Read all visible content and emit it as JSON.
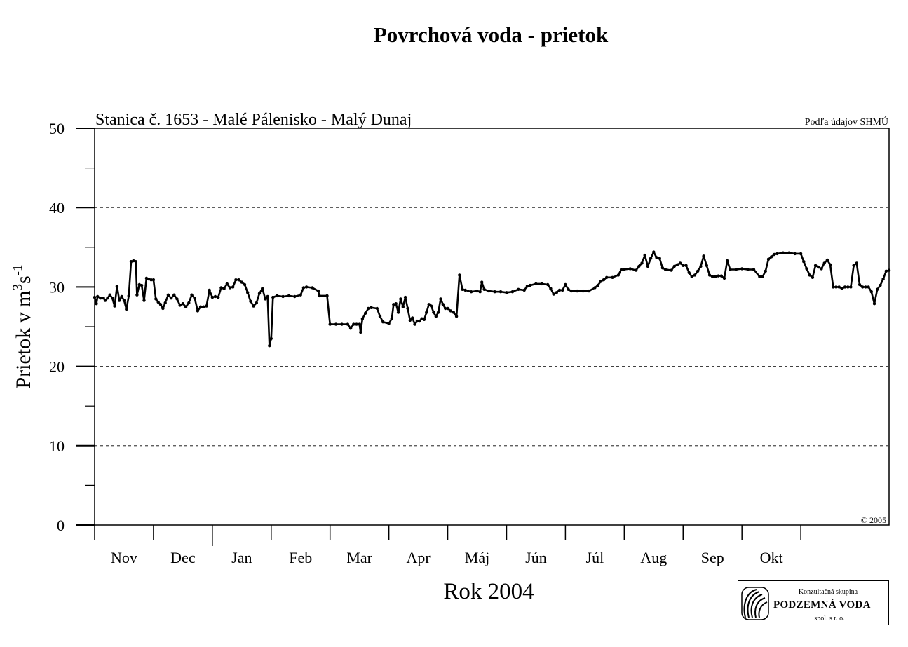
{
  "chart_data": {
    "type": "line",
    "title": "Povrchová voda - prietok",
    "subtitle": "Stanica č. 1653 - Malé Pálenisko - Malý Dunaj",
    "source_note": "Podľa údajov SHMÚ",
    "copyright": "© 2005",
    "xlabel": "Rok 2004",
    "ylabel_main": "Prietok v m",
    "ylabel_sup1": "3",
    "ylabel_mid": "s",
    "ylabel_sup2": "-1",
    "ylim": [
      0,
      50
    ],
    "yticks": [
      0,
      10,
      20,
      30,
      40,
      50
    ],
    "grid": "horizontal dashed",
    "months": [
      "Nov",
      "Dec",
      "Jan",
      "Feb",
      "Mar",
      "Apr",
      "Máj",
      "Jún",
      "Júl",
      "Aug",
      "Sep",
      "Okt"
    ],
    "x_unit": "month index (0 = start of Nov)",
    "series": [
      {
        "values": [
          [
            0.0,
            28.7
          ],
          [
            0.03,
            27.9
          ],
          [
            0.05,
            28.8
          ],
          [
            0.1,
            28.6
          ],
          [
            0.15,
            28.6
          ],
          [
            0.18,
            28.3
          ],
          [
            0.22,
            28.6
          ],
          [
            0.26,
            29.0
          ],
          [
            0.3,
            28.6
          ],
          [
            0.34,
            27.6
          ],
          [
            0.38,
            30.1
          ],
          [
            0.42,
            28.3
          ],
          [
            0.46,
            28.8
          ],
          [
            0.5,
            28.3
          ],
          [
            0.54,
            27.2
          ],
          [
            0.58,
            28.9
          ],
          [
            0.62,
            33.2
          ],
          [
            0.66,
            33.3
          ],
          [
            0.7,
            33.2
          ],
          [
            0.72,
            29.0
          ],
          [
            0.76,
            30.3
          ],
          [
            0.8,
            30.2
          ],
          [
            0.84,
            28.3
          ],
          [
            0.88,
            31.1
          ],
          [
            0.92,
            31.0
          ],
          [
            0.96,
            30.9
          ],
          [
            1.0,
            30.9
          ],
          [
            1.04,
            28.5
          ],
          [
            1.08,
            28.1
          ],
          [
            1.12,
            27.8
          ],
          [
            1.16,
            27.3
          ],
          [
            1.2,
            28.0
          ],
          [
            1.25,
            29.0
          ],
          [
            1.3,
            28.6
          ],
          [
            1.35,
            29.0
          ],
          [
            1.4,
            28.5
          ],
          [
            1.45,
            27.7
          ],
          [
            1.5,
            27.9
          ],
          [
            1.55,
            27.5
          ],
          [
            1.6,
            28.0
          ],
          [
            1.65,
            29.0
          ],
          [
            1.7,
            28.6
          ],
          [
            1.75,
            27.0
          ],
          [
            1.8,
            27.5
          ],
          [
            1.85,
            27.5
          ],
          [
            1.9,
            27.6
          ],
          [
            1.95,
            29.6
          ],
          [
            2.0,
            28.7
          ],
          [
            2.05,
            28.8
          ],
          [
            2.1,
            28.7
          ],
          [
            2.15,
            29.9
          ],
          [
            2.2,
            29.8
          ],
          [
            2.25,
            30.4
          ],
          [
            2.3,
            29.9
          ],
          [
            2.35,
            30.0
          ],
          [
            2.4,
            30.9
          ],
          [
            2.45,
            30.9
          ],
          [
            2.5,
            30.6
          ],
          [
            2.55,
            30.3
          ],
          [
            2.6,
            29.3
          ],
          [
            2.65,
            28.2
          ],
          [
            2.7,
            27.6
          ],
          [
            2.75,
            28.0
          ],
          [
            2.8,
            29.2
          ],
          [
            2.85,
            29.8
          ],
          [
            2.9,
            28.5
          ],
          [
            2.94,
            28.8
          ],
          [
            2.97,
            22.6
          ],
          [
            3.0,
            23.5
          ],
          [
            3.03,
            28.7
          ],
          [
            3.1,
            28.9
          ],
          [
            3.2,
            28.8
          ],
          [
            3.3,
            28.9
          ],
          [
            3.4,
            28.8
          ],
          [
            3.5,
            29.0
          ],
          [
            3.55,
            29.9
          ],
          [
            3.6,
            30.0
          ],
          [
            3.7,
            29.9
          ],
          [
            3.8,
            29.5
          ],
          [
            3.82,
            28.9
          ],
          [
            3.95,
            28.9
          ],
          [
            4.0,
            25.3
          ],
          [
            4.1,
            25.3
          ],
          [
            4.2,
            25.3
          ],
          [
            4.3,
            25.3
          ],
          [
            4.35,
            24.8
          ],
          [
            4.4,
            25.3
          ],
          [
            4.45,
            25.3
          ],
          [
            4.5,
            25.3
          ],
          [
            4.52,
            24.3
          ],
          [
            4.55,
            26.0
          ],
          [
            4.6,
            26.7
          ],
          [
            4.65,
            27.3
          ],
          [
            4.7,
            27.4
          ],
          [
            4.8,
            27.3
          ],
          [
            4.85,
            26.3
          ],
          [
            4.9,
            25.6
          ],
          [
            5.0,
            25.4
          ],
          [
            5.05,
            26.0
          ],
          [
            5.08,
            27.8
          ],
          [
            5.12,
            27.9
          ],
          [
            5.16,
            26.8
          ],
          [
            5.2,
            28.5
          ],
          [
            5.24,
            27.5
          ],
          [
            5.28,
            28.7
          ],
          [
            5.32,
            27.3
          ],
          [
            5.36,
            25.8
          ],
          [
            5.4,
            26.1
          ],
          [
            5.44,
            25.3
          ],
          [
            5.48,
            25.7
          ],
          [
            5.52,
            25.7
          ],
          [
            5.56,
            26.0
          ],
          [
            5.6,
            25.9
          ],
          [
            5.64,
            26.8
          ],
          [
            5.68,
            27.8
          ],
          [
            5.72,
            27.6
          ],
          [
            5.76,
            26.8
          ],
          [
            5.8,
            26.3
          ],
          [
            5.84,
            26.8
          ],
          [
            5.88,
            28.5
          ],
          [
            5.92,
            27.8
          ],
          [
            5.96,
            27.3
          ],
          [
            6.0,
            27.3
          ],
          [
            6.05,
            27.0
          ],
          [
            6.1,
            26.8
          ],
          [
            6.15,
            26.3
          ],
          [
            6.2,
            31.5
          ],
          [
            6.25,
            29.7
          ],
          [
            6.3,
            29.6
          ],
          [
            6.4,
            29.4
          ],
          [
            6.5,
            29.5
          ],
          [
            6.55,
            29.4
          ],
          [
            6.58,
            30.6
          ],
          [
            6.62,
            29.7
          ],
          [
            6.7,
            29.5
          ],
          [
            6.8,
            29.4
          ],
          [
            6.9,
            29.4
          ],
          [
            7.0,
            29.3
          ],
          [
            7.1,
            29.4
          ],
          [
            7.2,
            29.7
          ],
          [
            7.3,
            29.6
          ],
          [
            7.35,
            30.1
          ],
          [
            7.4,
            30.2
          ],
          [
            7.5,
            30.4
          ],
          [
            7.6,
            30.4
          ],
          [
            7.7,
            30.3
          ],
          [
            7.75,
            29.8
          ],
          [
            7.8,
            29.1
          ],
          [
            7.85,
            29.3
          ],
          [
            7.9,
            29.6
          ],
          [
            7.95,
            29.6
          ],
          [
            8.0,
            30.3
          ],
          [
            8.05,
            29.7
          ],
          [
            8.1,
            29.5
          ],
          [
            8.2,
            29.5
          ],
          [
            8.3,
            29.5
          ],
          [
            8.4,
            29.5
          ],
          [
            8.5,
            29.9
          ],
          [
            8.55,
            30.2
          ],
          [
            8.6,
            30.7
          ],
          [
            8.65,
            30.9
          ],
          [
            8.7,
            31.2
          ],
          [
            8.8,
            31.2
          ],
          [
            8.9,
            31.5
          ],
          [
            8.95,
            32.2
          ],
          [
            9.0,
            32.2
          ],
          [
            9.1,
            32.3
          ],
          [
            9.2,
            32.1
          ],
          [
            9.25,
            32.6
          ],
          [
            9.3,
            33.0
          ],
          [
            9.35,
            34.0
          ],
          [
            9.4,
            32.6
          ],
          [
            9.45,
            33.6
          ],
          [
            9.5,
            34.4
          ],
          [
            9.55,
            33.7
          ],
          [
            9.6,
            33.6
          ],
          [
            9.65,
            32.4
          ],
          [
            9.7,
            32.2
          ],
          [
            9.8,
            32.1
          ],
          [
            9.85,
            32.6
          ],
          [
            9.9,
            32.8
          ],
          [
            9.95,
            33.0
          ],
          [
            10.0,
            32.7
          ],
          [
            10.05,
            32.7
          ],
          [
            10.1,
            31.8
          ],
          [
            10.15,
            31.3
          ],
          [
            10.2,
            31.5
          ],
          [
            10.25,
            32.0
          ],
          [
            10.3,
            32.6
          ],
          [
            10.35,
            33.9
          ],
          [
            10.4,
            32.7
          ],
          [
            10.45,
            31.5
          ],
          [
            10.5,
            31.3
          ],
          [
            10.55,
            31.3
          ],
          [
            10.6,
            31.4
          ],
          [
            10.65,
            31.4
          ],
          [
            10.7,
            31.1
          ],
          [
            10.75,
            33.3
          ],
          [
            10.8,
            32.2
          ],
          [
            10.9,
            32.2
          ],
          [
            11.0,
            32.3
          ],
          [
            11.1,
            32.2
          ],
          [
            11.2,
            32.2
          ],
          [
            11.3,
            31.3
          ],
          [
            11.35,
            31.3
          ],
          [
            11.4,
            32.0
          ],
          [
            11.45,
            33.5
          ],
          [
            11.5,
            33.8
          ],
          [
            11.55,
            34.1
          ],
          [
            11.6,
            34.2
          ],
          [
            11.7,
            34.3
          ],
          [
            11.8,
            34.3
          ],
          [
            11.9,
            34.2
          ],
          [
            12.0,
            34.2
          ],
          [
            12.05,
            33.2
          ],
          [
            12.1,
            32.3
          ],
          [
            12.15,
            31.5
          ],
          [
            12.2,
            31.2
          ],
          [
            12.25,
            32.7
          ],
          [
            12.3,
            32.5
          ],
          [
            12.35,
            32.3
          ],
          [
            12.4,
            33.0
          ],
          [
            12.45,
            33.4
          ],
          [
            12.5,
            32.8
          ],
          [
            12.55,
            30.0
          ],
          [
            12.6,
            30.0
          ],
          [
            12.65,
            30.0
          ],
          [
            12.7,
            29.8
          ],
          [
            12.75,
            30.0
          ],
          [
            12.8,
            30.0
          ],
          [
            12.85,
            30.0
          ],
          [
            12.9,
            32.7
          ],
          [
            12.95,
            33.0
          ],
          [
            13.0,
            30.3
          ],
          [
            13.05,
            30.0
          ],
          [
            13.1,
            30.0
          ],
          [
            13.15,
            30.0
          ],
          [
            13.2,
            29.4
          ],
          [
            13.25,
            27.9
          ],
          [
            13.3,
            29.7
          ],
          [
            13.35,
            30.2
          ],
          [
            13.4,
            31.0
          ],
          [
            13.45,
            32.0
          ],
          [
            13.5,
            32.1
          ]
        ]
      }
    ],
    "logo": {
      "line1": "Konzultačná skupina",
      "line2": "PODZEMNÁ VODA",
      "line3": "spol. s r. o."
    }
  }
}
